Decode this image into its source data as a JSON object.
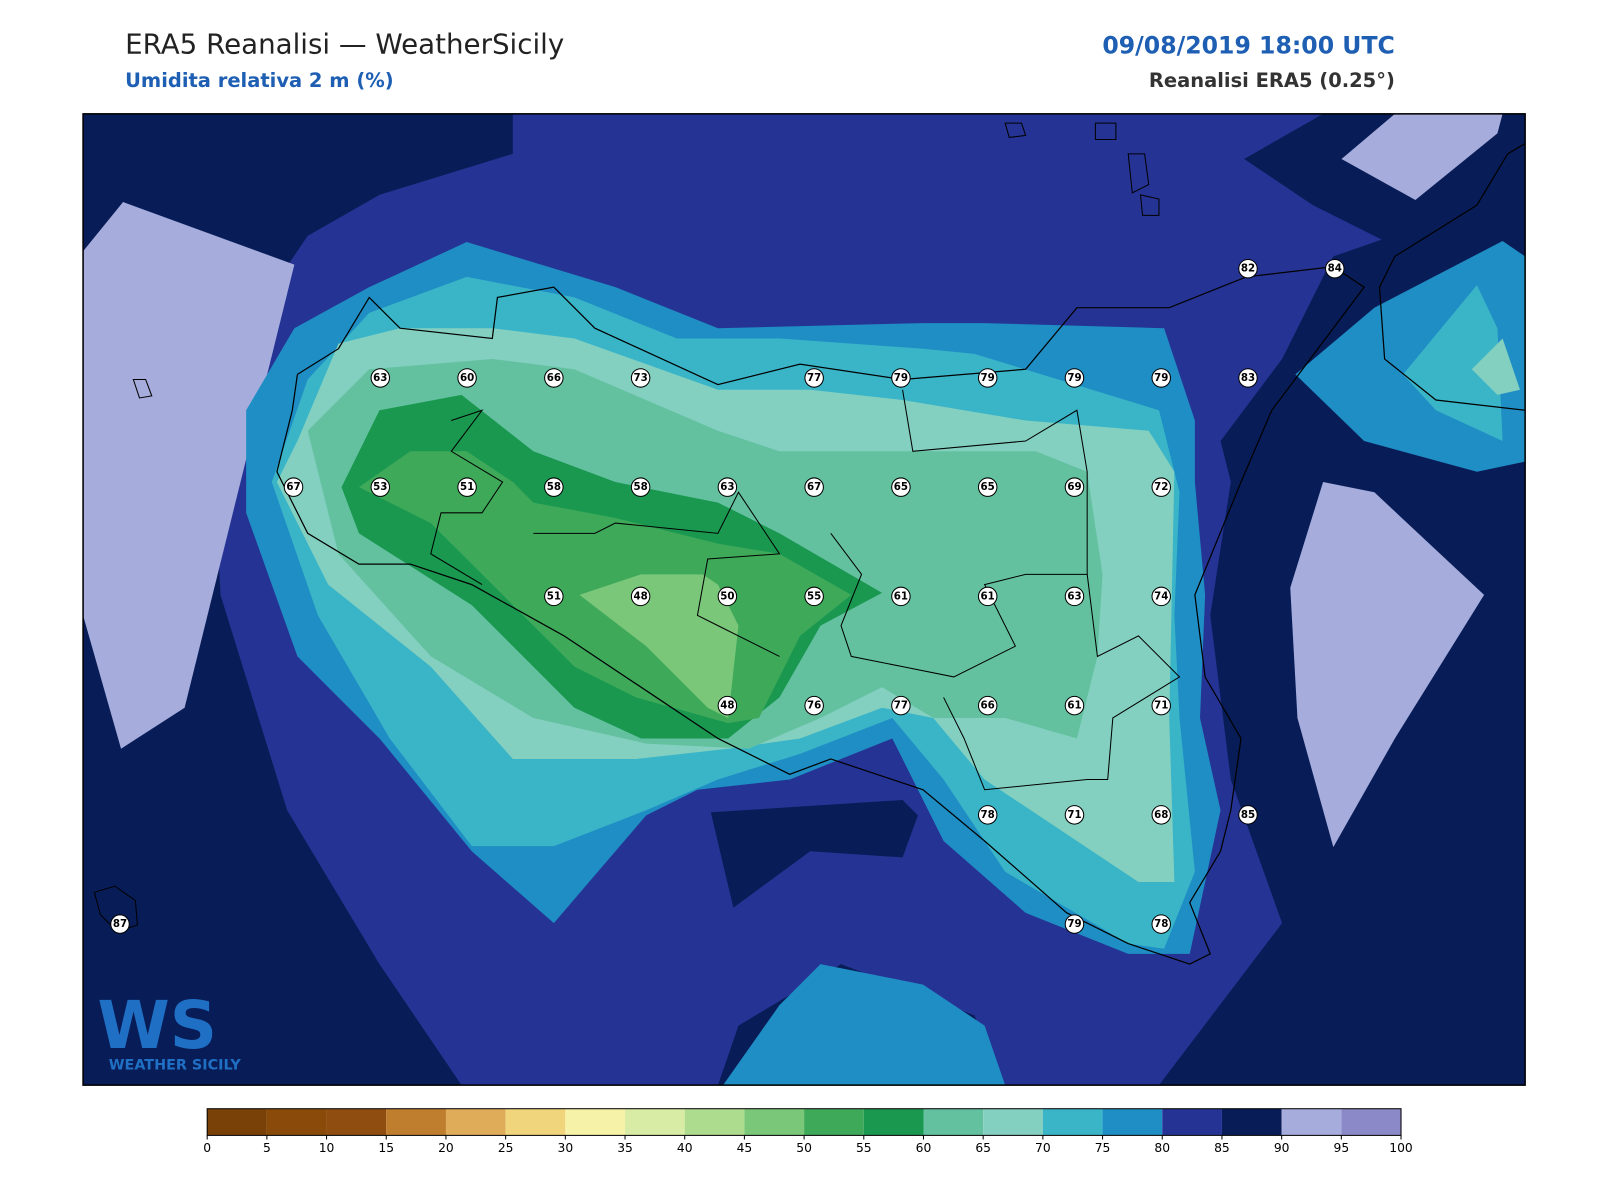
{
  "header": {
    "title": "ERA5 Reanalisi — WeatherSicily",
    "subtitle": "Umidita relativa 2 m (%)",
    "datetime": "09/08/2019 18:00 UTC",
    "source": "Reanalisi ERA5 (0.25°)"
  },
  "map": {
    "stations": [
      82,
      84,
      63,
      60,
      66,
      73,
      77,
      79,
      79,
      79,
      79,
      83,
      67,
      53,
      51,
      58,
      58,
      63,
      67,
      65,
      65,
      69,
      72,
      51,
      48,
      50,
      55,
      61,
      61,
      63,
      74,
      48,
      76,
      77,
      66,
      61,
      71,
      78,
      71,
      68,
      85,
      87,
      79,
      78
    ]
  },
  "logo": {
    "mark": "WS",
    "text": "WEATHER SICILY"
  },
  "colorbar": {
    "ticks": [
      0,
      5,
      10,
      15,
      20,
      25,
      30,
      35,
      40,
      45,
      50,
      55,
      60,
      65,
      70,
      75,
      80,
      85,
      90,
      95,
      100
    ],
    "colors": [
      "#794108",
      "#8a4b0a",
      "#8f4e10",
      "#bf7e2e",
      "#dfad5a",
      "#f0d57c",
      "#f6f3a8",
      "#d8eca6",
      "#aedc8f",
      "#7ac77a",
      "#3fa95a",
      "#1a9850",
      "#63c1a0",
      "#84d0c0",
      "#3ab5c8",
      "#1f8ec4",
      "#253494",
      "#081d58",
      "#a6acdc",
      "#8c89c8"
    ]
  }
}
